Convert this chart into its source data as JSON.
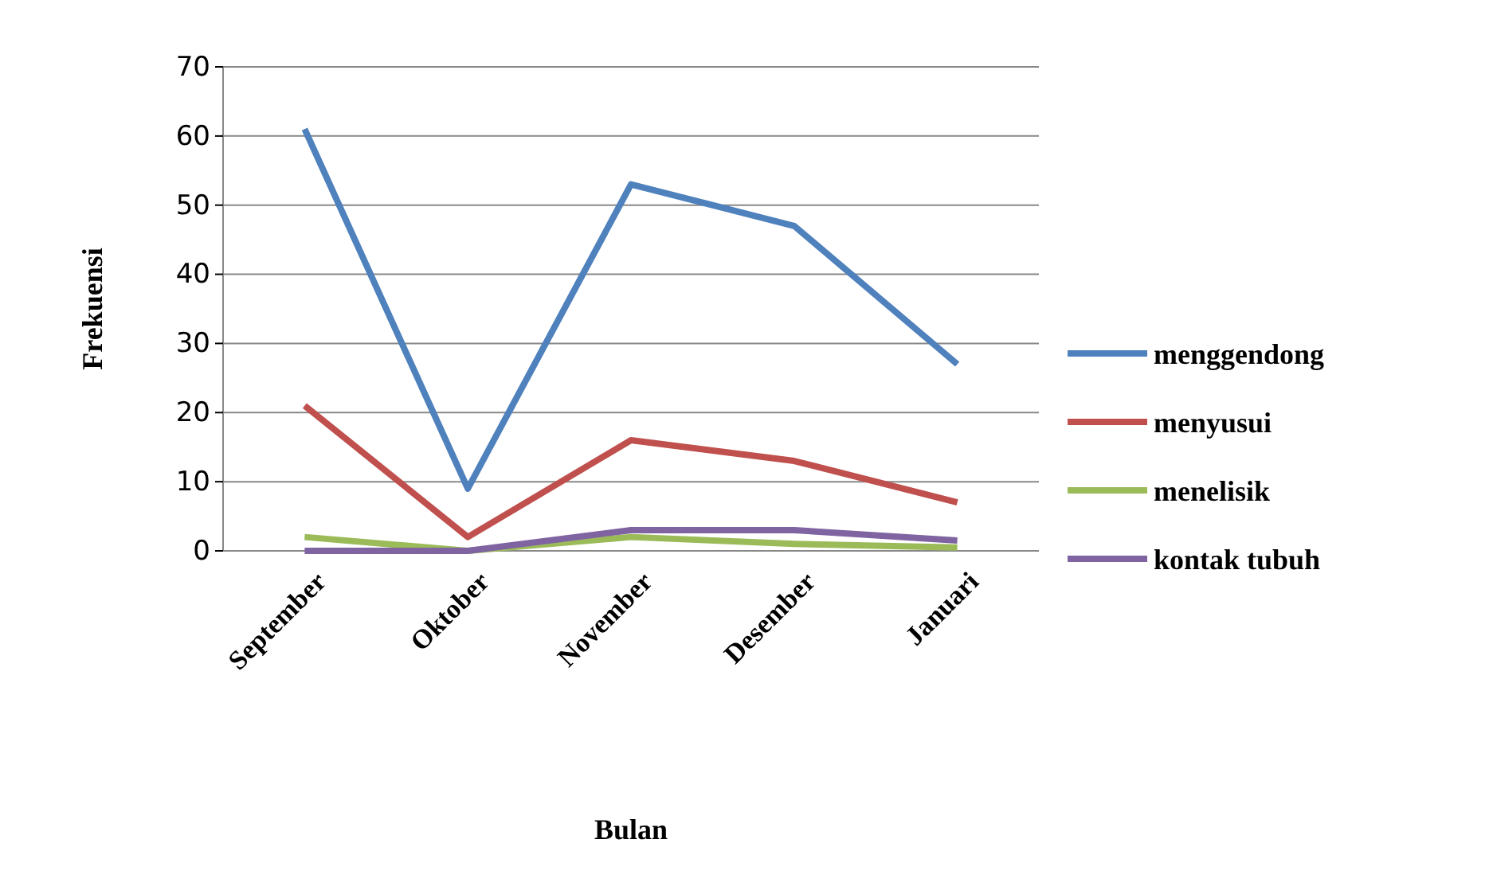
{
  "chart_data": {
    "type": "line",
    "xlabel": "Bulan",
    "ylabel": "Frekuensi",
    "categories": [
      "September",
      "Oktober",
      "November",
      "Desember",
      "Januari"
    ],
    "series": [
      {
        "name": "menggendong",
        "color": "#4f81bd",
        "values": [
          61,
          9,
          53,
          47,
          27
        ]
      },
      {
        "name": "menyusui",
        "color": "#c0504d",
        "values": [
          21,
          2,
          16,
          13,
          7
        ]
      },
      {
        "name": "menelisik",
        "color": "#9bbb59",
        "values": [
          2,
          0,
          2,
          1,
          0.5
        ]
      },
      {
        "name": "kontak tubuh",
        "color": "#8064a2",
        "values": [
          0,
          0,
          3,
          3,
          1.5
        ]
      }
    ],
    "ylim": [
      0,
      70
    ],
    "yticks": [
      0,
      10,
      20,
      30,
      40,
      50,
      60,
      70
    ],
    "grid": "y",
    "legend": "right",
    "marker": "none",
    "line_style": "solid"
  }
}
